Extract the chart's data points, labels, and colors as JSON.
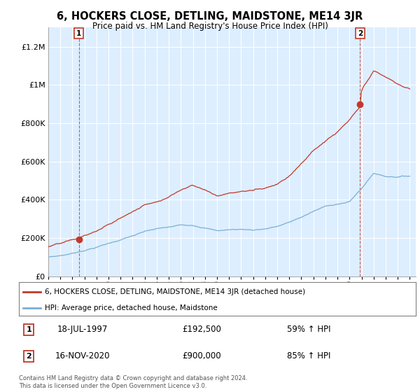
{
  "title": "6, HOCKERS CLOSE, DETLING, MAIDSTONE, ME14 3JR",
  "subtitle": "Price paid vs. HM Land Registry's House Price Index (HPI)",
  "ylim": [
    0,
    1300000
  ],
  "yticks": [
    0,
    200000,
    400000,
    600000,
    800000,
    1000000,
    1200000
  ],
  "ytick_labels": [
    "£0",
    "£200K",
    "£400K",
    "£600K",
    "£800K",
    "£1M",
    "£1.2M"
  ],
  "hpi_color": "#7bafd4",
  "price_color": "#c0392b",
  "chart_bg": "#ddeeff",
  "marker1_date_x": 1997.54,
  "marker1_y": 192500,
  "marker1_label": "1",
  "marker1_date_str": "18-JUL-1997",
  "marker1_price_str": "£192,500",
  "marker1_hpi_str": "59% ↑ HPI",
  "marker2_date_x": 2020.88,
  "marker2_y": 900000,
  "marker2_label": "2",
  "marker2_date_str": "16-NOV-2020",
  "marker2_price_str": "£900,000",
  "marker2_hpi_str": "85% ↑ HPI",
  "legend_line1": "6, HOCKERS CLOSE, DETLING, MAIDSTONE, ME14 3JR (detached house)",
  "legend_line2": "HPI: Average price, detached house, Maidstone",
  "footnote": "Contains HM Land Registry data © Crown copyright and database right 2024.\nThis data is licensed under the Open Government Licence v3.0.",
  "xmin": 1995.3,
  "xmax": 2025.5
}
